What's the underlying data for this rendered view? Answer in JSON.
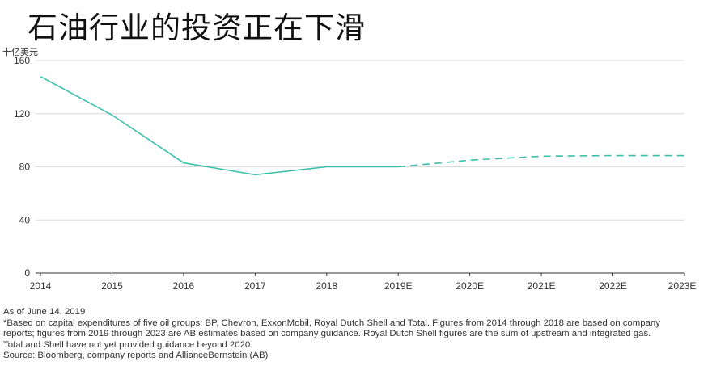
{
  "title": "石油行业的投资正在下滑",
  "colors": {
    "line": "#3dbfad",
    "grid": "#d9d9d9",
    "axis": "#333333"
  },
  "chart_data": {
    "type": "line",
    "title": "石油行业的投资正在下滑",
    "ylabel": "十亿美元",
    "xlabel": "",
    "categories": [
      "2014",
      "2015",
      "2016",
      "2017",
      "2018",
      "2019E",
      "2020E",
      "2021E",
      "2022E",
      "2023E"
    ],
    "ylim": [
      0,
      160
    ],
    "yticks": [
      0,
      40,
      80,
      120,
      160
    ],
    "grid": "horizontal",
    "legend": "none",
    "series": [
      {
        "values": [
          148,
          119,
          83,
          74,
          80,
          80,
          85,
          88,
          88.5,
          88.5
        ],
        "actual_through": "2018",
        "estimate_from": "2019E",
        "estimate_style": "dashed"
      }
    ]
  },
  "notes": {
    "as_of": "As of June 14, 2019",
    "footnote_1": "*Based on capital expenditures of five oil groups: BP, Chevron, ExxonMobil, Royal Dutch Shell and Total. Figures from 2014 through 2018 are based on company",
    "footnote_2": "reports; figures from 2019 through 2023 are AB estimates based on company guidance. Royal Dutch Shell figures are the sum of upstream and integrated gas.",
    "footnote_3": "Total and Shell have not yet provided guidance beyond 2020.",
    "source": "Source: Bloomberg, company reports and AllianceBernstein (AB)"
  }
}
